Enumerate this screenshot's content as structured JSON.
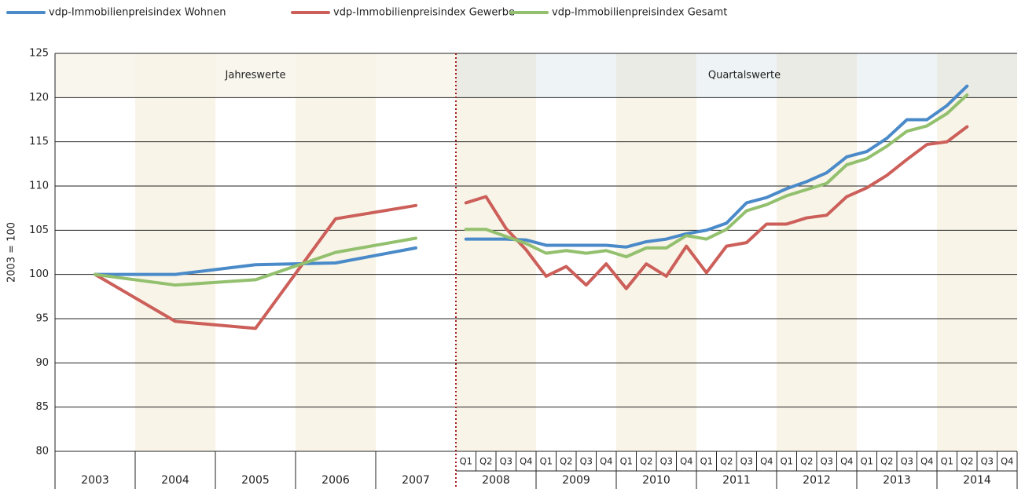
{
  "chart_data": {
    "type": "line",
    "ylabel": "2003 = 100",
    "ylim": [
      80,
      125
    ],
    "yticks": [
      80,
      85,
      90,
      95,
      100,
      105,
      110,
      115,
      120,
      125
    ],
    "grid": true,
    "legend": "top",
    "annotations": [
      "Jahreswerte",
      "Quartalswerte"
    ],
    "categories": [
      "2003",
      "2004",
      "2005",
      "2006",
      "2007"
    ],
    "quarter_groups": [
      {
        "year": "2008",
        "quarters": [
          "Q1",
          "Q2",
          "Q3",
          "Q4"
        ]
      },
      {
        "year": "2009",
        "quarters": [
          "Q1",
          "Q2",
          "Q3",
          "Q4"
        ]
      },
      {
        "year": "2010",
        "quarters": [
          "Q1",
          "Q2",
          "Q3",
          "Q4"
        ]
      },
      {
        "year": "2011",
        "quarters": [
          "Q1",
          "Q2",
          "Q3",
          "Q4"
        ]
      },
      {
        "year": "2012",
        "quarters": [
          "Q1",
          "Q2",
          "Q3",
          "Q4"
        ]
      },
      {
        "year": "2013",
        "quarters": [
          "Q1",
          "Q2",
          "Q3",
          "Q4"
        ]
      },
      {
        "year": "2014",
        "quarters": [
          "Q1",
          "Q2",
          "Q3",
          "Q4"
        ]
      }
    ],
    "series": [
      {
        "name": "vdp-Immobilienpreisindex Wohnen",
        "color": "#4a8ac9",
        "values": [
          100,
          100,
          101.1,
          101.3,
          103
        ],
        "quarterly_values": [
          104,
          104,
          104,
          103.9,
          103.3,
          103.3,
          103.3,
          103.3,
          103.1,
          103.7,
          104.0,
          104.6,
          105.0,
          105.8,
          108.1,
          108.7,
          109.7,
          110.5,
          111.5,
          113.3,
          113.9,
          115.4,
          117.5,
          117.5,
          119.1,
          121.3,
          null,
          null
        ]
      },
      {
        "name": "vdp-Immobilienpreisindex Gewerbe",
        "color": "#cc5f5a",
        "values": [
          100,
          94.7,
          93.9,
          106.3,
          107.8
        ],
        "quarterly_values": [
          108.1,
          108.8,
          105.2,
          102.8,
          99.8,
          100.9,
          98.8,
          101.2,
          98.4,
          101.2,
          99.8,
          103.2,
          100.2,
          103.2,
          103.6,
          105.7,
          105.7,
          106.4,
          106.7,
          108.8,
          109.8,
          111.2,
          113.0,
          114.7,
          115.0,
          116.7,
          null,
          null
        ]
      },
      {
        "name": "vdp-Immobilienpreisindex Gesamt",
        "color": "#93c06e",
        "values": [
          100,
          98.8,
          99.4,
          102.5,
          104.1
        ],
        "quarterly_values": [
          105.1,
          105.1,
          104.3,
          103.5,
          102.4,
          102.7,
          102.4,
          102.7,
          102.0,
          103.0,
          103.0,
          104.4,
          104.0,
          105.1,
          107.2,
          107.9,
          108.9,
          109.6,
          110.3,
          112.4,
          113.1,
          114.5,
          116.2,
          116.8,
          118.2,
          120.3,
          null,
          null
        ]
      }
    ]
  }
}
